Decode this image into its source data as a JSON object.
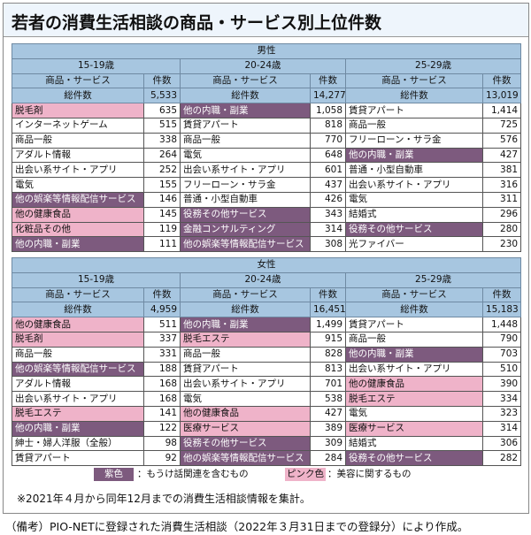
{
  "title": "若者の消費生活相談の商品・サービス別上位件数",
  "header_labels": {
    "item": "商品・サービス",
    "count": "件数",
    "total": "総件数"
  },
  "colors": {
    "purple": "#7d5a7e",
    "pink": "#efb3c9",
    "header": "#a7c6e0"
  },
  "tables": [
    {
      "gender": "男性",
      "groups": [
        {
          "age": "15-19歳",
          "total": "5,533",
          "rows": [
            {
              "name": "脱毛剤",
              "count": "635",
              "tag": "pink"
            },
            {
              "name": "インターネットゲーム",
              "count": "515",
              "tag": ""
            },
            {
              "name": "商品一般",
              "count": "338",
              "tag": ""
            },
            {
              "name": "アダルト情報",
              "count": "264",
              "tag": ""
            },
            {
              "name": "出会い系サイト・アプリ",
              "count": "252",
              "tag": ""
            },
            {
              "name": "電気",
              "count": "155",
              "tag": ""
            },
            {
              "name": "他の娯楽等情報配信サービス",
              "count": "146",
              "tag": "purple"
            },
            {
              "name": "他の健康食品",
              "count": "145",
              "tag": "pink"
            },
            {
              "name": "化粧品その他",
              "count": "119",
              "tag": "pink"
            },
            {
              "name": "他の内職・副業",
              "count": "111",
              "tag": "purple"
            }
          ]
        },
        {
          "age": "20-24歳",
          "total": "14,277",
          "rows": [
            {
              "name": "他の内職・副業",
              "count": "1,058",
              "tag": "purple"
            },
            {
              "name": "賃貸アパート",
              "count": "818",
              "tag": ""
            },
            {
              "name": "商品一般",
              "count": "770",
              "tag": ""
            },
            {
              "name": "電気",
              "count": "648",
              "tag": ""
            },
            {
              "name": "出会い系サイト・アプリ",
              "count": "601",
              "tag": ""
            },
            {
              "name": "フリーローン・サラ金",
              "count": "437",
              "tag": ""
            },
            {
              "name": "普通・小型自動車",
              "count": "426",
              "tag": ""
            },
            {
              "name": "役務その他サービス",
              "count": "343",
              "tag": "purple"
            },
            {
              "name": "金融コンサルティング",
              "count": "314",
              "tag": "purple"
            },
            {
              "name": "他の娯楽等情報配信サービス",
              "count": "308",
              "tag": "purple"
            }
          ]
        },
        {
          "age": "25-29歳",
          "total": "13,019",
          "rows": [
            {
              "name": "賃貸アパート",
              "count": "1,414",
              "tag": ""
            },
            {
              "name": "商品一般",
              "count": "725",
              "tag": ""
            },
            {
              "name": "フリーローン・サラ金",
              "count": "576",
              "tag": ""
            },
            {
              "name": "他の内職・副業",
              "count": "427",
              "tag": "purple"
            },
            {
              "name": "普通・小型自動車",
              "count": "381",
              "tag": ""
            },
            {
              "name": "出会い系サイト・アプリ",
              "count": "316",
              "tag": ""
            },
            {
              "name": "電気",
              "count": "311",
              "tag": ""
            },
            {
              "name": "結婚式",
              "count": "296",
              "tag": ""
            },
            {
              "name": "役務その他サービス",
              "count": "280",
              "tag": "purple"
            },
            {
              "name": "光ファイバー",
              "count": "230",
              "tag": ""
            }
          ]
        }
      ]
    },
    {
      "gender": "女性",
      "groups": [
        {
          "age": "15-19歳",
          "total": "4,959",
          "rows": [
            {
              "name": "他の健康食品",
              "count": "511",
              "tag": "pink"
            },
            {
              "name": "脱毛剤",
              "count": "337",
              "tag": "pink"
            },
            {
              "name": "商品一般",
              "count": "331",
              "tag": ""
            },
            {
              "name": "他の娯楽等情報配信サービス",
              "count": "188",
              "tag": "purple"
            },
            {
              "name": "アダルト情報",
              "count": "168",
              "tag": ""
            },
            {
              "name": "出会い系サイト・アプリ",
              "count": "168",
              "tag": ""
            },
            {
              "name": "脱毛エステ",
              "count": "141",
              "tag": "pink"
            },
            {
              "name": "他の内職・副業",
              "count": "122",
              "tag": "purple"
            },
            {
              "name": "紳士・婦人洋服（全般）",
              "count": "98",
              "tag": ""
            },
            {
              "name": "賃貸アパート",
              "count": "92",
              "tag": ""
            }
          ]
        },
        {
          "age": "20-24歳",
          "total": "16,451",
          "rows": [
            {
              "name": "他の内職・副業",
              "count": "1,499",
              "tag": "purple"
            },
            {
              "name": "脱毛エステ",
              "count": "915",
              "tag": "pink"
            },
            {
              "name": "商品一般",
              "count": "828",
              "tag": ""
            },
            {
              "name": "賃貸アパート",
              "count": "813",
              "tag": ""
            },
            {
              "name": "出会い系サイト・アプリ",
              "count": "701",
              "tag": ""
            },
            {
              "name": "電気",
              "count": "538",
              "tag": ""
            },
            {
              "name": "他の健康食品",
              "count": "427",
              "tag": "pink"
            },
            {
              "name": "医療サービス",
              "count": "389",
              "tag": "pink"
            },
            {
              "name": "役務その他サービス",
              "count": "309",
              "tag": "purple"
            },
            {
              "name": "他の娯楽等情報配信サービス",
              "count": "284",
              "tag": "purple"
            }
          ]
        },
        {
          "age": "25-29歳",
          "total": "15,183",
          "rows": [
            {
              "name": "賃貸アパート",
              "count": "1,448",
              "tag": ""
            },
            {
              "name": "商品一般",
              "count": "790",
              "tag": ""
            },
            {
              "name": "他の内職・副業",
              "count": "703",
              "tag": "purple"
            },
            {
              "name": "出会い系サイト・アプリ",
              "count": "510",
              "tag": ""
            },
            {
              "name": "他の健康食品",
              "count": "390",
              "tag": "pink"
            },
            {
              "name": "脱毛エステ",
              "count": "334",
              "tag": "pink"
            },
            {
              "name": "電気",
              "count": "323",
              "tag": ""
            },
            {
              "name": "医療サービス",
              "count": "314",
              "tag": "pink"
            },
            {
              "name": "結婚式",
              "count": "306",
              "tag": ""
            },
            {
              "name": "役務その他サービス",
              "count": "282",
              "tag": "purple"
            }
          ]
        }
      ]
    }
  ],
  "legend": {
    "purple_label": "紫色",
    "purple_desc": "：もうけ話関連を含むもの",
    "pink_label": "ピンク色",
    "pink_desc": "：美容に関するもの"
  },
  "note": "※2021年４月から同年12月までの消費生活相談情報を集計。",
  "source": "（備考）PIO-NETに登録された消費生活相談（2022年３月31日までの登録分）により作成。"
}
